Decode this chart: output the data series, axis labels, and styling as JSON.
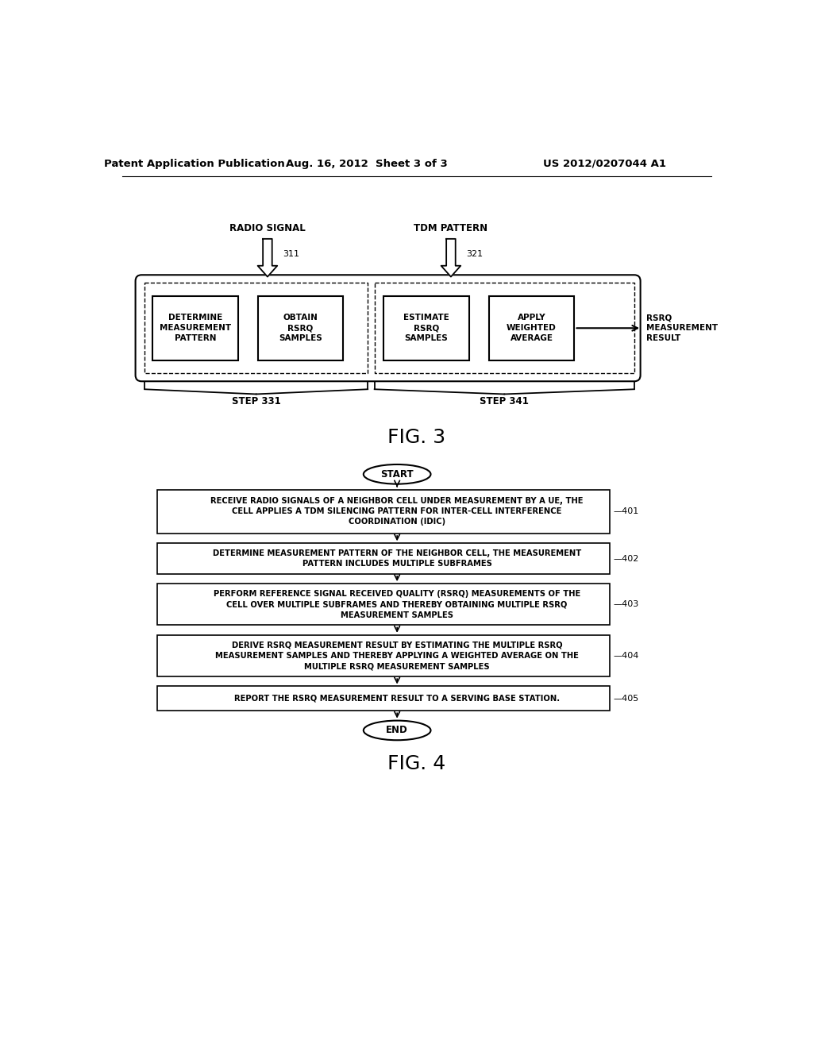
{
  "header_left": "Patent Application Publication",
  "header_center": "Aug. 16, 2012  Sheet 3 of 3",
  "header_right": "US 2012/0207044 A1",
  "fig3_label": "FIG. 3",
  "fig4_label": "FIG. 4",
  "radio_signal_label": "RADIO SIGNAL",
  "tdm_pattern_label": "TDM PATTERN",
  "ref_311": "311",
  "ref_321": "321",
  "box1_text": "DETERMINE\nMEASUREMENT\nPATTERN",
  "box2_text": "OBTAIN\nRSRQ\nSAMPLES",
  "box3_text": "ESTIMATE\nRSRQ\nSAMPLES",
  "box4_text": "APPLY\nWEIGHTED\nAVERAGE",
  "rsrq_result_text": "RSRQ\nMEASUREMENT\nRESULT",
  "step331_label": "STEP 331",
  "step341_label": "STEP 341",
  "start_label": "START",
  "end_label": "END",
  "step401_text": "RECEIVE RADIO SIGNALS OF A NEIGHBOR CELL UNDER MEASUREMENT BY A UE, THE\nCELL APPLIES A TDM SILENCING PATTERN FOR INTER-CELL INTERFERENCE\nCOORDINATION (IDIC)",
  "step401_ref": "401",
  "step402_text": "DETERMINE MEASUREMENT PATTERN OF THE NEIGHBOR CELL, THE MEASUREMENT\nPATTERN INCLUDES MULTIPLE SUBFRAMES",
  "step402_ref": "402",
  "step403_text": "PERFORM REFERENCE SIGNAL RECEIVED QUALITY (RSRQ) MEASUREMENTS OF THE\nCELL OVER MULTIPLE SUBFRAMES AND THEREBY OBTAINING MULTIPLE RSRQ\nMEASUREMENT SAMPLES",
  "step403_ref": "403",
  "step404_text": "DERIVE RSRQ MEASUREMENT RESULT BY ESTIMATING THE MULTIPLE RSRQ\nMEASUREMENT SAMPLES AND THEREBY APPLYING A WEIGHTED AVERAGE ON THE\nMULTIPLE RSRQ MEASUREMENT SAMPLES",
  "step404_ref": "404",
  "step405_text": "REPORT THE RSRQ MEASUREMENT RESULT TO A SERVING BASE STATION.",
  "step405_ref": "405",
  "bg_color": "#ffffff",
  "font_size_header": 9.5,
  "font_size_box": 7.5,
  "font_size_fig": 18,
  "font_size_step": 8.5,
  "font_size_flow": 7.2,
  "font_size_ref": 8.0
}
